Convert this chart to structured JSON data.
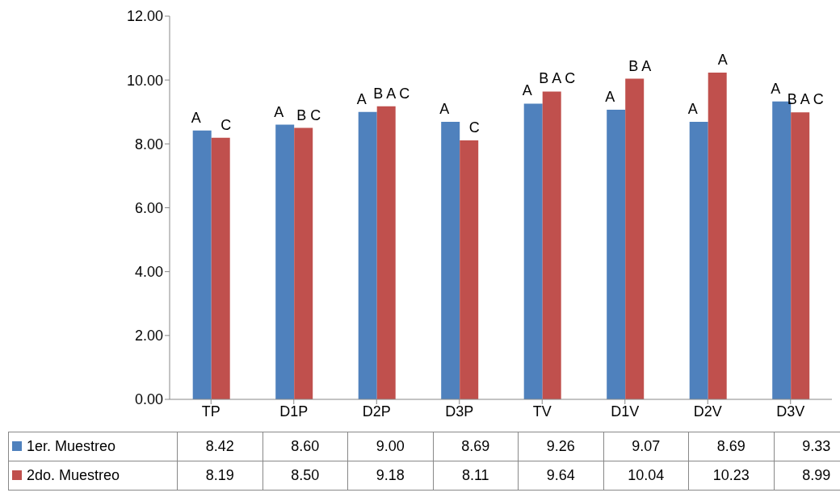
{
  "chart_data": {
    "type": "bar",
    "categories": [
      "TP",
      "D1P",
      "D2P",
      "D3P",
      "TV",
      "D1V",
      "D2V",
      "D3V"
    ],
    "series": [
      {
        "name": "1er. Muestreo",
        "color": "#4f81bd",
        "values": [
          8.42,
          8.6,
          9.0,
          8.69,
          9.26,
          9.07,
          8.69,
          9.33
        ],
        "value_labels": [
          "8.42",
          "8.60",
          "9.00",
          "8.69",
          "9.26",
          "9.07",
          "8.69",
          "9.33"
        ]
      },
      {
        "name": "2do. Muestreo",
        "color": "#c0504d",
        "values": [
          8.19,
          8.5,
          9.18,
          8.11,
          9.64,
          10.04,
          10.23,
          8.99
        ],
        "value_labels": [
          "8.19",
          "8.50",
          "9.18",
          "8.11",
          "9.64",
          "10.04",
          "10.23",
          "8.99"
        ]
      }
    ],
    "ylim": [
      0,
      12
    ],
    "yticks": [
      {
        "value": 0,
        "label": "0.00"
      },
      {
        "value": 2,
        "label": "2.00"
      },
      {
        "value": 4,
        "label": "4.00"
      },
      {
        "value": 6,
        "label": "6.00"
      },
      {
        "value": 8,
        "label": "8.00"
      },
      {
        "value": 10,
        "label": "10.00"
      },
      {
        "value": 12,
        "label": "12.00"
      }
    ],
    "grid": false,
    "legend": "bottom",
    "annotations": [
      {
        "text": "A",
        "x": "TP",
        "y": 8.42
      },
      {
        "text": "C",
        "x": "TP",
        "y": 8.19
      },
      {
        "text": "A",
        "x": "D1P",
        "y": 8.6
      },
      {
        "text": "B C",
        "x": "D1P",
        "y": 8.5
      },
      {
        "text": "A",
        "x": "D2P",
        "y": 9.0
      },
      {
        "text": "B A C",
        "x": "D2P",
        "y": 9.18
      },
      {
        "text": "A",
        "x": "D3P",
        "y": 8.69
      },
      {
        "text": "C",
        "x": "D3P",
        "y": 8.11
      },
      {
        "text": "A",
        "x": "TV",
        "y": 9.26
      },
      {
        "text": "B A C",
        "x": "TV",
        "y": 9.64
      },
      {
        "text": "A",
        "x": "D1V",
        "y": 9.07
      },
      {
        "text": "B A",
        "x": "D1V",
        "y": 10.04
      },
      {
        "text": "A",
        "x": "D2V",
        "y": 8.69
      },
      {
        "text": "A",
        "x": "D2V",
        "y": 10.23
      },
      {
        "text": "A",
        "x": "D3V",
        "y": 9.33
      },
      {
        "text": "B A C",
        "x": "D3V",
        "y": 8.99
      }
    ]
  }
}
